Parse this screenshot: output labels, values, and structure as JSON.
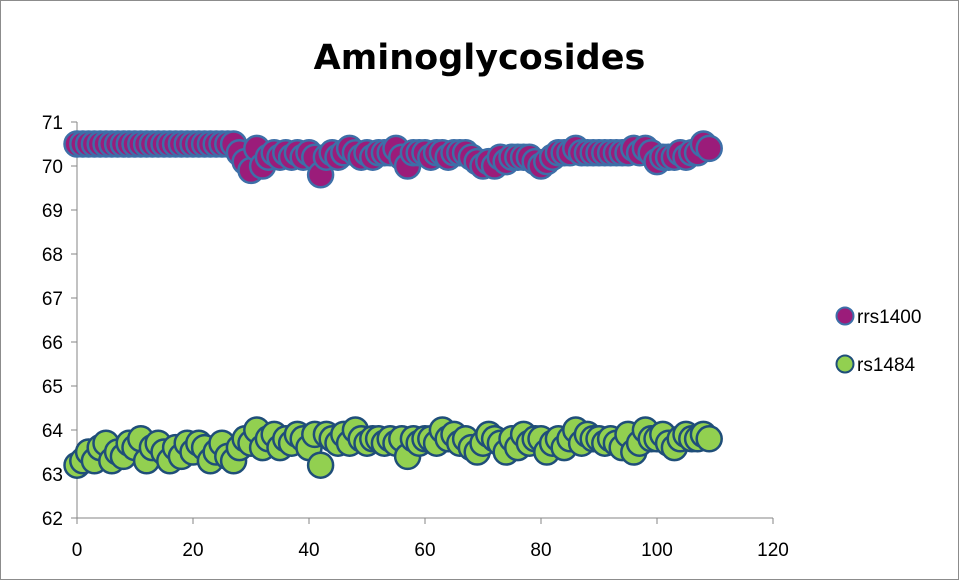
{
  "chart_data": {
    "type": "scatter",
    "title": "Aminoglycosides",
    "xlabel": "",
    "ylabel": "",
    "xlim": [
      0,
      120
    ],
    "ylim": [
      62,
      71
    ],
    "xticks": [
      "0",
      "20",
      "40",
      "60",
      "80",
      "100",
      "120"
    ],
    "yticks": [
      "62",
      "63",
      "64",
      "65",
      "66",
      "67",
      "68",
      "69",
      "70",
      "71"
    ],
    "grid": false,
    "legend_position": "right",
    "series": [
      {
        "name": "rrs1400",
        "color": "#9b1c7a",
        "edge_color": "#3d6fa8",
        "points": [
          [
            0,
            70.5
          ],
          [
            1,
            70.5
          ],
          [
            2,
            70.5
          ],
          [
            3,
            70.5
          ],
          [
            4,
            70.5
          ],
          [
            5,
            70.5
          ],
          [
            6,
            70.5
          ],
          [
            7,
            70.5
          ],
          [
            8,
            70.5
          ],
          [
            9,
            70.5
          ],
          [
            10,
            70.5
          ],
          [
            11,
            70.5
          ],
          [
            12,
            70.5
          ],
          [
            13,
            70.5
          ],
          [
            14,
            70.5
          ],
          [
            15,
            70.5
          ],
          [
            16,
            70.5
          ],
          [
            17,
            70.5
          ],
          [
            18,
            70.5
          ],
          [
            19,
            70.5
          ],
          [
            20,
            70.5
          ],
          [
            21,
            70.5
          ],
          [
            22,
            70.5
          ],
          [
            23,
            70.5
          ],
          [
            24,
            70.5
          ],
          [
            25,
            70.5
          ],
          [
            26,
            70.5
          ],
          [
            27,
            70.5
          ],
          [
            28,
            70.3
          ],
          [
            29,
            70.1
          ],
          [
            30,
            69.9
          ],
          [
            31,
            70.4
          ],
          [
            32,
            70.0
          ],
          [
            33,
            70.2
          ],
          [
            34,
            70.3
          ],
          [
            35,
            70.2
          ],
          [
            36,
            70.3
          ],
          [
            37,
            70.2
          ],
          [
            38,
            70.3
          ],
          [
            39,
            70.2
          ],
          [
            40,
            70.3
          ],
          [
            41,
            70.2
          ],
          [
            42,
            69.8
          ],
          [
            43,
            70.2
          ],
          [
            44,
            70.3
          ],
          [
            45,
            70.2
          ],
          [
            46,
            70.3
          ],
          [
            47,
            70.4
          ],
          [
            48,
            70.3
          ],
          [
            49,
            70.2
          ],
          [
            50,
            70.3
          ],
          [
            51,
            70.2
          ],
          [
            52,
            70.3
          ],
          [
            53,
            70.3
          ],
          [
            54,
            70.3
          ],
          [
            55,
            70.4
          ],
          [
            56,
            70.2
          ],
          [
            57,
            70.0
          ],
          [
            58,
            70.3
          ],
          [
            59,
            70.3
          ],
          [
            60,
            70.3
          ],
          [
            61,
            70.2
          ],
          [
            62,
            70.3
          ],
          [
            63,
            70.3
          ],
          [
            64,
            70.2
          ],
          [
            65,
            70.3
          ],
          [
            66,
            70.3
          ],
          [
            67,
            70.3
          ],
          [
            68,
            70.2
          ],
          [
            69,
            70.1
          ],
          [
            70,
            70.0
          ],
          [
            71,
            70.1
          ],
          [
            72,
            70.0
          ],
          [
            73,
            70.2
          ],
          [
            74,
            70.1
          ],
          [
            75,
            70.2
          ],
          [
            76,
            70.2
          ],
          [
            77,
            70.2
          ],
          [
            78,
            70.2
          ],
          [
            79,
            70.1
          ],
          [
            80,
            70.0
          ],
          [
            81,
            70.1
          ],
          [
            82,
            70.2
          ],
          [
            83,
            70.3
          ],
          [
            84,
            70.3
          ],
          [
            85,
            70.3
          ],
          [
            86,
            70.4
          ],
          [
            87,
            70.3
          ],
          [
            88,
            70.3
          ],
          [
            89,
            70.3
          ],
          [
            90,
            70.3
          ],
          [
            91,
            70.3
          ],
          [
            92,
            70.3
          ],
          [
            93,
            70.3
          ],
          [
            94,
            70.3
          ],
          [
            95,
            70.3
          ],
          [
            96,
            70.4
          ],
          [
            97,
            70.3
          ],
          [
            98,
            70.4
          ],
          [
            99,
            70.3
          ],
          [
            100,
            70.1
          ],
          [
            101,
            70.2
          ],
          [
            102,
            70.2
          ],
          [
            103,
            70.2
          ],
          [
            104,
            70.3
          ],
          [
            105,
            70.2
          ],
          [
            106,
            70.3
          ],
          [
            107,
            70.3
          ],
          [
            108,
            70.5
          ],
          [
            109,
            70.4
          ]
        ]
      },
      {
        "name": "rs1484",
        "color": "#92d050",
        "edge_color": "#1f4e79",
        "points": [
          [
            0,
            63.2
          ],
          [
            1,
            63.3
          ],
          [
            2,
            63.5
          ],
          [
            3,
            63.3
          ],
          [
            4,
            63.6
          ],
          [
            5,
            63.7
          ],
          [
            6,
            63.3
          ],
          [
            7,
            63.5
          ],
          [
            8,
            63.4
          ],
          [
            9,
            63.7
          ],
          [
            10,
            63.6
          ],
          [
            11,
            63.8
          ],
          [
            12,
            63.3
          ],
          [
            13,
            63.6
          ],
          [
            14,
            63.7
          ],
          [
            15,
            63.5
          ],
          [
            16,
            63.3
          ],
          [
            17,
            63.6
          ],
          [
            18,
            63.4
          ],
          [
            19,
            63.7
          ],
          [
            20,
            63.5
          ],
          [
            21,
            63.7
          ],
          [
            22,
            63.6
          ],
          [
            23,
            63.3
          ],
          [
            24,
            63.5
          ],
          [
            25,
            63.7
          ],
          [
            26,
            63.4
          ],
          [
            27,
            63.3
          ],
          [
            28,
            63.6
          ],
          [
            29,
            63.8
          ],
          [
            30,
            63.7
          ],
          [
            31,
            64.0
          ],
          [
            32,
            63.6
          ],
          [
            33,
            63.8
          ],
          [
            34,
            63.9
          ],
          [
            35,
            63.6
          ],
          [
            36,
            63.8
          ],
          [
            37,
            63.7
          ],
          [
            38,
            63.9
          ],
          [
            39,
            63.8
          ],
          [
            40,
            63.6
          ],
          [
            41,
            63.9
          ],
          [
            42,
            63.2
          ],
          [
            43,
            63.9
          ],
          [
            44,
            63.8
          ],
          [
            45,
            63.7
          ],
          [
            46,
            63.9
          ],
          [
            47,
            63.7
          ],
          [
            48,
            64.0
          ],
          [
            49,
            63.8
          ],
          [
            50,
            63.7
          ],
          [
            51,
            63.8
          ],
          [
            52,
            63.8
          ],
          [
            53,
            63.7
          ],
          [
            54,
            63.8
          ],
          [
            55,
            63.7
          ],
          [
            56,
            63.8
          ],
          [
            57,
            63.4
          ],
          [
            58,
            63.8
          ],
          [
            59,
            63.7
          ],
          [
            60,
            63.8
          ],
          [
            61,
            63.8
          ],
          [
            62,
            63.7
          ],
          [
            63,
            64.0
          ],
          [
            64,
            63.8
          ],
          [
            65,
            63.9
          ],
          [
            66,
            63.7
          ],
          [
            67,
            63.8
          ],
          [
            68,
            63.6
          ],
          [
            69,
            63.5
          ],
          [
            70,
            63.7
          ],
          [
            71,
            63.9
          ],
          [
            72,
            63.8
          ],
          [
            73,
            63.7
          ],
          [
            74,
            63.5
          ],
          [
            75,
            63.8
          ],
          [
            76,
            63.6
          ],
          [
            77,
            63.9
          ],
          [
            78,
            63.7
          ],
          [
            79,
            63.8
          ],
          [
            80,
            63.8
          ],
          [
            81,
            63.5
          ],
          [
            82,
            63.7
          ],
          [
            83,
            63.8
          ],
          [
            84,
            63.6
          ],
          [
            85,
            63.8
          ],
          [
            86,
            64.0
          ],
          [
            87,
            63.7
          ],
          [
            88,
            63.9
          ],
          [
            89,
            63.8
          ],
          [
            90,
            63.8
          ],
          [
            91,
            63.7
          ],
          [
            92,
            63.8
          ],
          [
            93,
            63.7
          ],
          [
            94,
            63.6
          ],
          [
            95,
            63.9
          ],
          [
            96,
            63.5
          ],
          [
            97,
            63.7
          ],
          [
            98,
            64.0
          ],
          [
            99,
            63.8
          ],
          [
            100,
            63.8
          ],
          [
            101,
            63.9
          ],
          [
            102,
            63.7
          ],
          [
            103,
            63.6
          ],
          [
            104,
            63.8
          ],
          [
            105,
            63.9
          ],
          [
            106,
            63.8
          ],
          [
            107,
            63.8
          ],
          [
            108,
            63.9
          ],
          [
            109,
            63.8
          ]
        ]
      }
    ]
  }
}
